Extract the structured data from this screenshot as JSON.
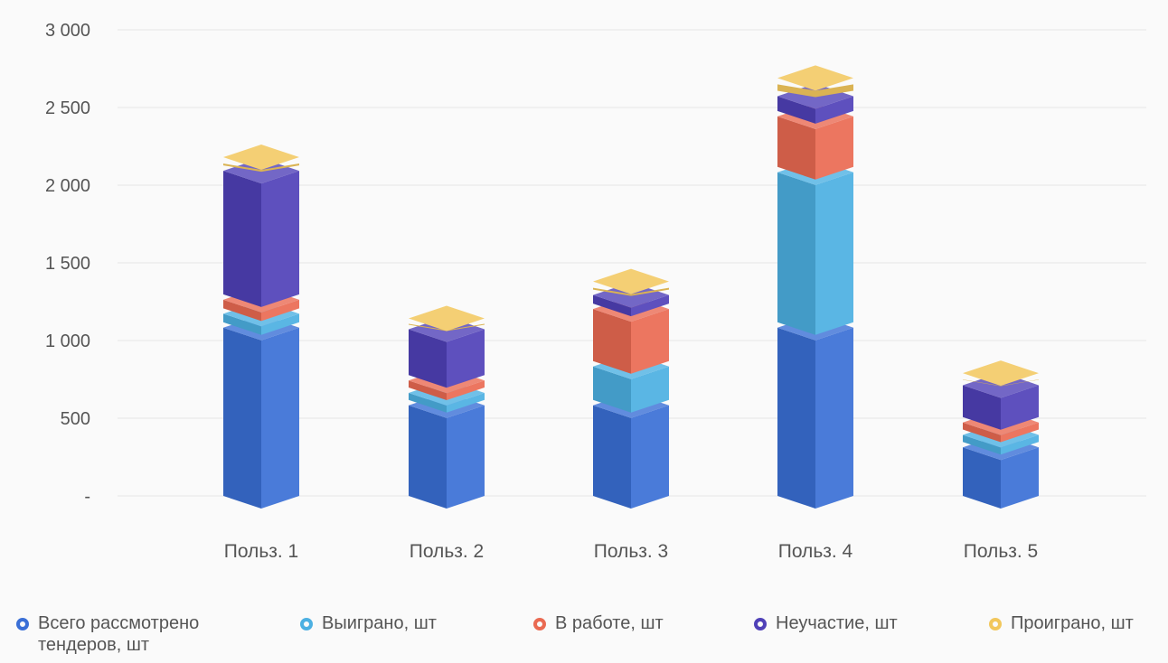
{
  "chart_data": {
    "type": "bar",
    "stacked": true,
    "categories": [
      "Польз. 1",
      "Польз. 2",
      "Польз. 3",
      "Польз. 4",
      "Польз. 5"
    ],
    "series": [
      {
        "name": "Всего рассмотрено тендеров, шт",
        "values": [
          1100,
          600,
          600,
          1100,
          330
        ],
        "color": "#3a6fd6"
      },
      {
        "name": "Выиграно, шт",
        "values": [
          90,
          80,
          250,
          1000,
          80
        ],
        "color": "#4cb0e2"
      },
      {
        "name": "В работе, шт",
        "values": [
          90,
          80,
          370,
          360,
          80
        ],
        "color": "#ea6a52"
      },
      {
        "name": "Неучастие, шт",
        "values": [
          830,
          330,
          90,
          130,
          240
        ],
        "color": "#5041b8"
      },
      {
        "name": "Проиграно, шт",
        "values": [
          70,
          50,
          70,
          100,
          60
        ],
        "color": "#f2c75c"
      }
    ],
    "yticks": [
      "-",
      "500",
      "1 000",
      "1 500",
      "2 000",
      "2 500",
      "3 000"
    ],
    "ylim": [
      0,
      3000
    ],
    "grid": true,
    "legend_position": "bottom"
  }
}
